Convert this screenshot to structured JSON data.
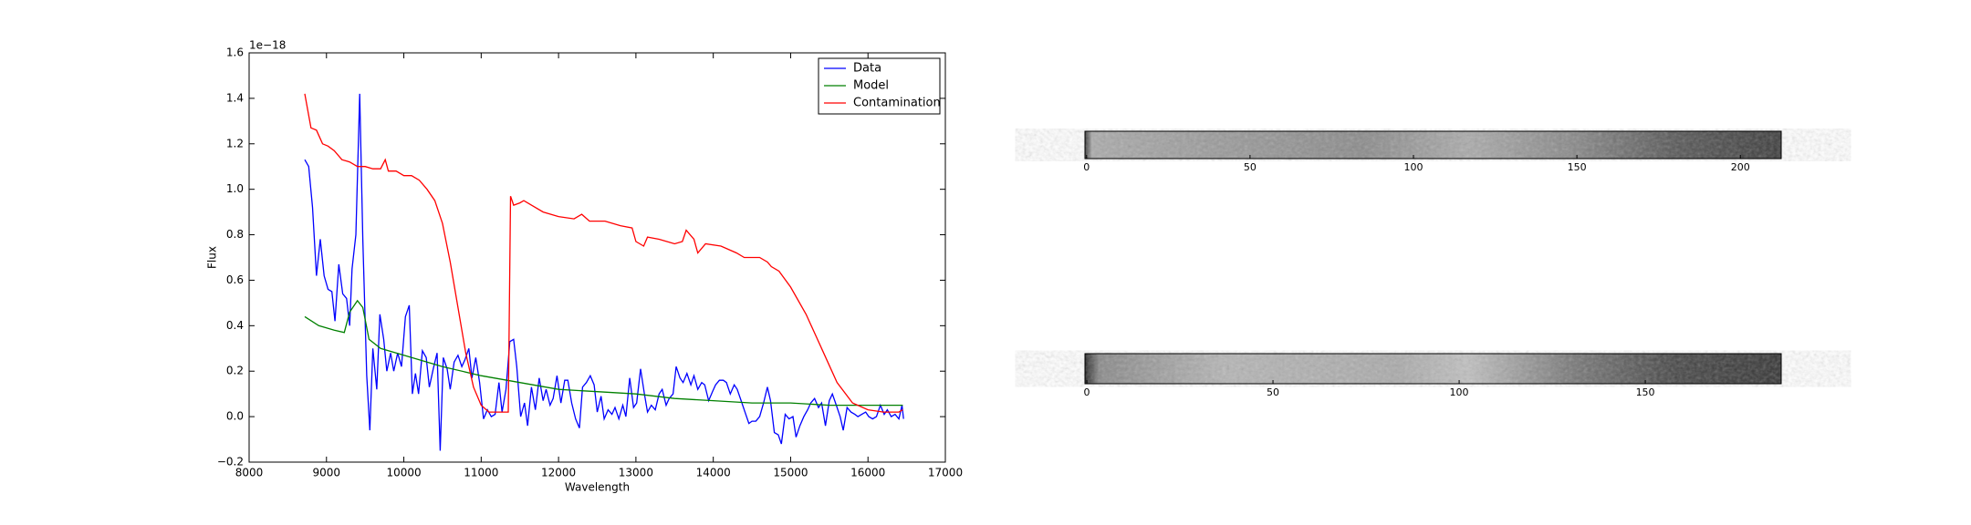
{
  "chart_data": [
    {
      "type": "line",
      "xlabel": "Wavelength",
      "ylabel": "Flux",
      "offset_text": "1e−18",
      "xlim": [
        8000,
        17000
      ],
      "xticks": [
        8000,
        9000,
        10000,
        11000,
        12000,
        13000,
        14000,
        15000,
        16000,
        17000
      ],
      "ylim": [
        -0.2,
        1.6
      ],
      "yticks": [
        {
          "value": -0.2,
          "label": "−0.2"
        },
        {
          "value": 0,
          "label": "0.0"
        },
        0.2,
        0.4,
        0.6,
        0.8,
        {
          "value": 1,
          "label": "1.0"
        },
        1.2,
        1.4,
        1.6
      ],
      "legend": "upper right",
      "series": [
        {
          "name": "Data",
          "color": "#0000ff",
          "x": [
            8720,
            8770,
            8820,
            8870,
            8920,
            8970,
            9020,
            9070,
            9110,
            9160,
            9210,
            9260,
            9300,
            9330,
            9380,
            9430,
            9470,
            9520,
            9560,
            9600,
            9650,
            9690,
            9740,
            9780,
            9830,
            9870,
            9920,
            9970,
            10020,
            10070,
            10110,
            10150,
            10190,
            10240,
            10290,
            10330,
            10380,
            10430,
            10470,
            10510,
            10560,
            10600,
            10650,
            10700,
            10750,
            10790,
            10840,
            10880,
            10930,
            10980,
            11030,
            11080,
            11130,
            11180,
            11230,
            11270,
            11320,
            11370,
            11420,
            11460,
            11510,
            11560,
            11600,
            11650,
            11700,
            11750,
            11800,
            11840,
            11890,
            11930,
            11980,
            12030,
            12080,
            12120,
            12170,
            12220,
            12270,
            12310,
            12360,
            12410,
            12460,
            12500,
            12550,
            12590,
            12640,
            12690,
            12730,
            12780,
            12830,
            12870,
            12920,
            12970,
            13010,
            13060,
            13110,
            13150,
            13200,
            13250,
            13300,
            13340,
            13390,
            13430,
            13480,
            13520,
            13570,
            13610,
            13660,
            13710,
            13750,
            13800,
            13850,
            13890,
            13940,
            13990,
            14030,
            14080,
            14130,
            14170,
            14220,
            14270,
            14310,
            14360,
            14410,
            14460,
            14500,
            14550,
            14600,
            14650,
            14700,
            14740,
            14790,
            14840,
            14880,
            14930,
            14980,
            15030,
            15070,
            15120,
            15170,
            15220,
            15260,
            15310,
            15360,
            15400,
            15450,
            15500,
            15540,
            15590,
            15640,
            15680,
            15730,
            15780,
            15830,
            15870,
            15920,
            15970,
            16010,
            16060,
            16110,
            16160,
            16210,
            16250,
            16300,
            16350,
            16400,
            16440,
            16460
          ],
          "values": [
            1.13,
            1.1,
            0.92,
            0.62,
            0.78,
            0.62,
            0.56,
            0.55,
            0.42,
            0.67,
            0.54,
            0.52,
            0.4,
            0.65,
            0.8,
            1.42,
            0.78,
            0.18,
            -0.06,
            0.3,
            0.12,
            0.45,
            0.34,
            0.2,
            0.28,
            0.2,
            0.28,
            0.22,
            0.44,
            0.49,
            0.1,
            0.19,
            0.1,
            0.29,
            0.26,
            0.13,
            0.21,
            0.28,
            -0.15,
            0.26,
            0.21,
            0.12,
            0.24,
            0.27,
            0.22,
            0.25,
            0.3,
            0.17,
            0.26,
            0.15,
            -0.01,
            0.03,
            0,
            0.01,
            0.15,
            0.02,
            0.12,
            0.33,
            0.34,
            0.22,
            0,
            0.06,
            -0.04,
            0.13,
            0.03,
            0.17,
            0.07,
            0.12,
            0.05,
            0.08,
            0.18,
            0.06,
            0.16,
            0.16,
            0.06,
            -0.01,
            -0.05,
            0.13,
            0.15,
            0.18,
            0.14,
            0.02,
            0.09,
            -0.01,
            0.03,
            0.01,
            0.04,
            -0.01,
            0.05,
            0,
            0.17,
            0.04,
            0.06,
            0.21,
            0.1,
            0.02,
            0.05,
            0.03,
            0.1,
            0.12,
            0.05,
            0.08,
            0.1,
            0.22,
            0.17,
            0.15,
            0.19,
            0.14,
            0.18,
            0.12,
            0.15,
            0.14,
            0.07,
            0.11,
            0.14,
            0.16,
            0.16,
            0.15,
            0.1,
            0.14,
            0.12,
            0.07,
            0.02,
            -0.03,
            -0.02,
            -0.02,
            0,
            0.06,
            0.13,
            0.07,
            -0.07,
            -0.08,
            -0.12,
            0.01,
            -0.01,
            0,
            -0.09,
            -0.04,
            0,
            0.03,
            0.06,
            0.08,
            0.04,
            0.06,
            -0.04,
            0.07,
            0.1,
            0.05,
            0,
            -0.06,
            0.04,
            0.02,
            0.01,
            0,
            0.01,
            0.02,
            0,
            -0.01,
            0,
            0.05,
            0.01,
            0.03,
            0,
            0.01,
            -0.01,
            0.05,
            -0.01
          ]
        },
        {
          "name": "Model",
          "color": "#008000",
          "x": [
            8720,
            8900,
            9100,
            9230,
            9300,
            9400,
            9470,
            9550,
            9700,
            10000,
            10500,
            11000,
            11500,
            12000,
            12500,
            13000,
            13500,
            14000,
            14500,
            15000,
            15500,
            16000,
            16450
          ],
          "values": [
            0.44,
            0.4,
            0.38,
            0.37,
            0.46,
            0.51,
            0.48,
            0.34,
            0.3,
            0.27,
            0.22,
            0.18,
            0.15,
            0.12,
            0.11,
            0.1,
            0.08,
            0.07,
            0.06,
            0.06,
            0.05,
            0.05,
            0.05
          ]
        },
        {
          "name": "Contamination",
          "color": "#ff0000",
          "x": [
            8720,
            8800,
            8870,
            8950,
            9020,
            9100,
            9200,
            9300,
            9400,
            9500,
            9600,
            9700,
            9760,
            9800,
            9900,
            10000,
            10100,
            10200,
            10300,
            10400,
            10500,
            10600,
            10700,
            10800,
            10900,
            11000,
            11100,
            11200,
            11350,
            11380,
            11420,
            11500,
            11550,
            11650,
            11800,
            12000,
            12200,
            12300,
            12400,
            12600,
            12800,
            12950,
            13000,
            13100,
            13150,
            13300,
            13500,
            13600,
            13650,
            13750,
            13800,
            13900,
            14100,
            14300,
            14400,
            14600,
            14700,
            14750,
            14850,
            15000,
            15200,
            15400,
            15600,
            15800,
            16000,
            16200,
            16400,
            16450
          ],
          "values": [
            1.42,
            1.27,
            1.26,
            1.2,
            1.19,
            1.17,
            1.13,
            1.12,
            1.1,
            1.1,
            1.09,
            1.09,
            1.13,
            1.08,
            1.08,
            1.06,
            1.06,
            1.04,
            1,
            0.95,
            0.85,
            0.68,
            0.48,
            0.28,
            0.13,
            0.05,
            0.02,
            0.02,
            0.02,
            0.97,
            0.93,
            0.94,
            0.95,
            0.93,
            0.9,
            0.88,
            0.87,
            0.89,
            0.86,
            0.86,
            0.84,
            0.83,
            0.77,
            0.75,
            0.79,
            0.78,
            0.76,
            0.77,
            0.82,
            0.78,
            0.72,
            0.76,
            0.75,
            0.72,
            0.7,
            0.7,
            0.68,
            0.66,
            0.64,
            0.57,
            0.45,
            0.3,
            0.15,
            0.06,
            0.03,
            0.02,
            0.02,
            0.03
          ]
        }
      ]
    },
    {
      "type": "image",
      "xlim": [
        -0.5,
        212.5
      ],
      "xticks": [
        0,
        50,
        100,
        150,
        200
      ]
    },
    {
      "type": "image",
      "xlim": [
        -0.5,
        186.5
      ],
      "xticks": [
        0,
        50,
        100,
        150
      ]
    }
  ]
}
